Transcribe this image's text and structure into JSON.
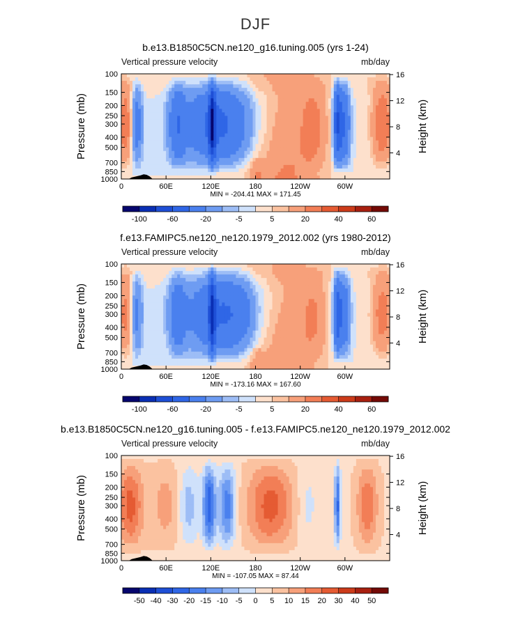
{
  "page_title": "DJF",
  "chart_data": [
    {
      "type": "heatmap",
      "title": "b.e13.B1850C5CN.ne120_g16.tuning.005 (yrs 1-24)",
      "variable": "Vertical pressure velocity",
      "units": "mb/day",
      "ylabel": "Pressure (mb)",
      "ylabel_right": "Height (km)",
      "x_ticks": [
        "0",
        "60E",
        "120E",
        "180",
        "120W",
        "60W"
      ],
      "y_ticks": [
        "100",
        "150",
        "200",
        "250",
        "300",
        "400",
        "500",
        "700",
        "850",
        "1000"
      ],
      "y_ticks_right": [
        "16",
        "12",
        "8",
        "4"
      ],
      "min_max": "MIN = -204.41   MAX = 171.45",
      "colorbar_labels": [
        "-100",
        "-60",
        "-20",
        "-5",
        "5",
        "20",
        "40",
        "60"
      ],
      "colorbar_levels": [
        "-100",
        "-80",
        "-60",
        "-40",
        "-20",
        "-10",
        "-5",
        "0",
        "5",
        "10",
        "20",
        "30",
        "40",
        "50",
        "60"
      ]
    },
    {
      "type": "heatmap",
      "title": "f.e13.FAMIPC5.ne120_ne120.1979_2012.002 (yrs 1980-2012)",
      "variable": "Vertical pressure velocity",
      "units": "mb/day",
      "ylabel": "Pressure (mb)",
      "ylabel_right": "Height (km)",
      "x_ticks": [
        "0",
        "60E",
        "120E",
        "180",
        "120W",
        "60W"
      ],
      "y_ticks": [
        "100",
        "150",
        "200",
        "250",
        "300",
        "400",
        "500",
        "700",
        "850",
        "1000"
      ],
      "y_ticks_right": [
        "16",
        "12",
        "8",
        "4"
      ],
      "min_max": "MIN = -173.16   MAX = 167.60",
      "colorbar_labels": [
        "-100",
        "-60",
        "-20",
        "-5",
        "5",
        "20",
        "40",
        "60"
      ],
      "colorbar_levels": [
        "-100",
        "-80",
        "-60",
        "-40",
        "-20",
        "-10",
        "-5",
        "0",
        "5",
        "10",
        "20",
        "30",
        "40",
        "50",
        "60"
      ]
    },
    {
      "type": "heatmap",
      "title": "b.e13.B1850C5CN.ne120_g16.tuning.005 - f.e13.FAMIPC5.ne120_ne120.1979_2012.002",
      "variable": "Vertical pressure velocity",
      "units": "mb/day",
      "ylabel": "Pressure (mb)",
      "ylabel_right": "Height (km)",
      "x_ticks": [
        "0",
        "60E",
        "120E",
        "180",
        "120W",
        "60W"
      ],
      "y_ticks": [
        "100",
        "150",
        "200",
        "250",
        "300",
        "400",
        "500",
        "700",
        "850",
        "1000"
      ],
      "y_ticks_right": [
        "16",
        "12",
        "8",
        "4"
      ],
      "min_max": "MIN = -107.05   MAX = 87.44",
      "colorbar_labels": [
        "-50",
        "-40",
        "-30",
        "-20",
        "-15",
        "-10",
        "-5",
        "0",
        "5",
        "10",
        "15",
        "20",
        "30",
        "40",
        "50"
      ],
      "colorbar_levels": [
        "-50",
        "-40",
        "-30",
        "-20",
        "-15",
        "-10",
        "-5",
        "0",
        "5",
        "10",
        "15",
        "20",
        "30",
        "40",
        "50"
      ]
    }
  ],
  "colors": {
    "palette": [
      "#06066e",
      "#0a2fb4",
      "#1e4fd6",
      "#2f66e6",
      "#4a80ee",
      "#6e9cf2",
      "#9dbdf6",
      "#cfe1fb",
      "#fde0cc",
      "#fbc2a0",
      "#f7a07a",
      "#f27e56",
      "#e55b33",
      "#cc3b1a",
      "#a82010",
      "#740a06"
    ],
    "topo": "#000000"
  }
}
